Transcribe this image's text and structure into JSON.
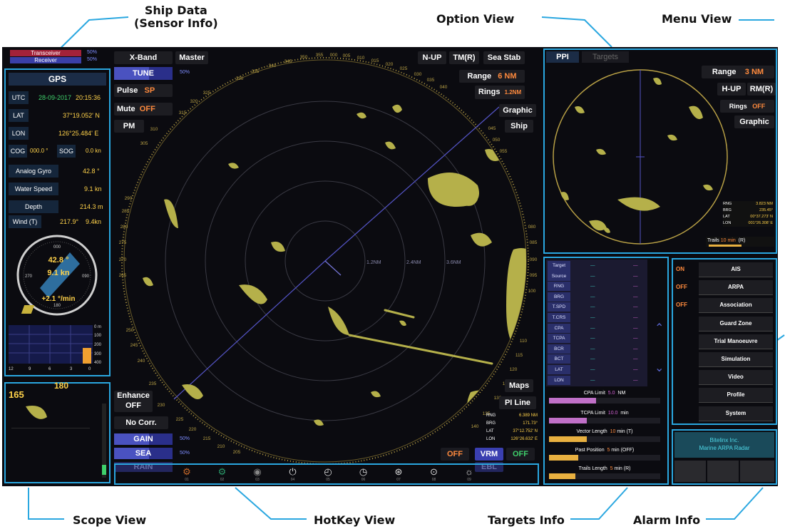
{
  "callouts": {
    "ship_data_1": "Ship Data",
    "ship_data_2": "(Sensor Info)",
    "option_view": "Option View",
    "menu_view": "Menu View",
    "scope_view": "Scope View",
    "hotkey_view": "HotKey View",
    "targets_info": "Targets Info",
    "alarm_info": "Alarm Info"
  },
  "status": {
    "transceiver_label": "Transceiver",
    "transceiver_pct": "50%",
    "receiver_label": "Receiver",
    "receiver_pct": "50%"
  },
  "ship": {
    "gps_title": "GPS",
    "utc_label": "UTC",
    "utc_date": "28-09-2017",
    "utc_time": "20:15:36",
    "lat_label": "LAT",
    "lat_value": "37°19.052' N",
    "lon_label": "LON",
    "lon_value": "126°25.484' E",
    "cog_label": "COG",
    "cog_value": "000.0 °",
    "sog_label": "SOG",
    "sog_value": "0.0 kn",
    "gyro_label": "Analog Gyro",
    "gyro_value": "42.8 °",
    "water_label": "Water Speed",
    "water_value": "9.1 kn",
    "depth_label": "Depth",
    "depth_value": "214.3 m",
    "wind_label": "Wind (T)",
    "wind_dir": "217.9°",
    "wind_speed": "9.4kn",
    "compass_heading": "42.8 °",
    "compass_speed": "9.1 kn",
    "compass_rot": "+2.1 °/min",
    "compass_n": "000",
    "compass_e": "090",
    "compass_s": "180",
    "compass_w": "270",
    "depth_scale": [
      "0 m",
      "100",
      "200",
      "300",
      "400"
    ],
    "depth_axis": [
      "12",
      "9",
      "6",
      "3",
      "0"
    ]
  },
  "scope": {
    "value_left": "165",
    "value_top": "180"
  },
  "left_controls": {
    "xband": "X-Band",
    "master": "Master",
    "tune": "TUNE",
    "tune_pct": "50%",
    "pulse": "Pulse",
    "pulse_val": "SP",
    "mute": "Mute",
    "mute_val": "OFF",
    "pm": "PM",
    "enhance": "Enhance",
    "enhance_val": "OFF",
    "nocorr": "No Corr.",
    "gain": "GAIN",
    "gain_pct": "50%",
    "sea": "SEA",
    "sea_pct": "50%",
    "rain": "RAIN"
  },
  "right_controls": {
    "nup": "N-UP",
    "tmr": "TM(R)",
    "seastab": "Sea Stab",
    "range_label": "Range",
    "range_val": "6 NM",
    "rings_label": "Rings",
    "rings_val": "1.2NM",
    "graphic": "Graphic",
    "ship": "Ship",
    "maps": "Maps",
    "piline": "PI Line",
    "cursor_rng_l": "RNG",
    "cursor_rng": "6.389 NM",
    "cursor_brg_l": "BRG",
    "cursor_brg": "171.73°",
    "cursor_lat_l": "LAT",
    "cursor_lat": "37°12.752' N",
    "cursor_lon_l": "LON",
    "cursor_lon": "126°26.632' E",
    "vrm_off": "OFF",
    "vrm": "VRM",
    "vrm_off2": "OFF",
    "ebl": "EBL"
  },
  "ring_labels": [
    "1.2NM",
    "2.4NM",
    "3.6NM"
  ],
  "bearing_labels": [
    "345",
    "350",
    "355",
    "000",
    "005",
    "010",
    "015",
    "340",
    "335",
    "330",
    "325",
    "320",
    "315",
    "310",
    "305",
    "020",
    "025",
    "030",
    "035",
    "040",
    "045",
    "050",
    "055",
    "250",
    "245",
    "240",
    "235",
    "230",
    "225",
    "220",
    "215",
    "210",
    "205",
    "140",
    "135",
    "130",
    "125",
    "120",
    "115",
    "110",
    "290",
    "285",
    "280",
    "275",
    "270",
    "265",
    "080",
    "085",
    "090",
    "095",
    "100"
  ],
  "ppi": {
    "tab_ppi": "PPI",
    "tab_targets": "Targets",
    "range_label": "Range",
    "range_val": "3 NM",
    "hup": "H-UP",
    "rmr": "RM(R)",
    "rings_label": "Rings",
    "rings_val": "OFF",
    "graphic": "Graphic",
    "rng_l": "RNG",
    "rng": "3.823 NM",
    "brg_l": "BRG",
    "brg": "235.45°",
    "lat_l": "LAT",
    "lat": "00°37.273' N",
    "lon_l": "LON",
    "lon": "001°26.308' E",
    "trails_label": "Trails",
    "trails_val": "10 min",
    "trails_mode": "(R)"
  },
  "targets": {
    "rows": [
      "Target Name",
      "Source",
      "RNG",
      "BRG",
      "T.SPD",
      "T.CRS",
      "CPA",
      "TCPA",
      "BCR",
      "BCT",
      "LAT",
      "LON"
    ],
    "dash": "—",
    "cpa_label": "CPA Limit",
    "cpa_val": "5.0",
    "cpa_unit": "NM",
    "tcpa_label": "TCPA Limit",
    "tcpa_val": "10.0",
    "tcpa_unit": "min",
    "vector_label": "Vector Length",
    "vector_val": "10",
    "vector_unit": "min",
    "vector_mode": "(T)",
    "past_label": "Past Position",
    "past_val": "5",
    "past_unit": "min",
    "past_mode": "(OFF)",
    "trails_label": "Trails Length",
    "trails_val": "5",
    "trails_unit": "min",
    "trails_mode": "(R)"
  },
  "menu": {
    "items": [
      {
        "state": "ON",
        "label": "AIS"
      },
      {
        "state": "OFF",
        "label": "ARPA"
      },
      {
        "state": "OFF",
        "label": "Association"
      },
      {
        "state": "",
        "label": "Guard Zone"
      },
      {
        "state": "",
        "label": "Trial Manoeuvre"
      },
      {
        "state": "",
        "label": "Simulation"
      },
      {
        "state": "",
        "label": "Video"
      },
      {
        "state": "",
        "label": "Profile"
      },
      {
        "state": "",
        "label": "System"
      }
    ]
  },
  "alarm": {
    "line1": "Bitelinx Inc.",
    "line2": "Marine ARPA Radar"
  },
  "hotkeys": [
    "01",
    "02",
    "03",
    "04",
    "05",
    "06",
    "07",
    "08",
    "09"
  ]
}
